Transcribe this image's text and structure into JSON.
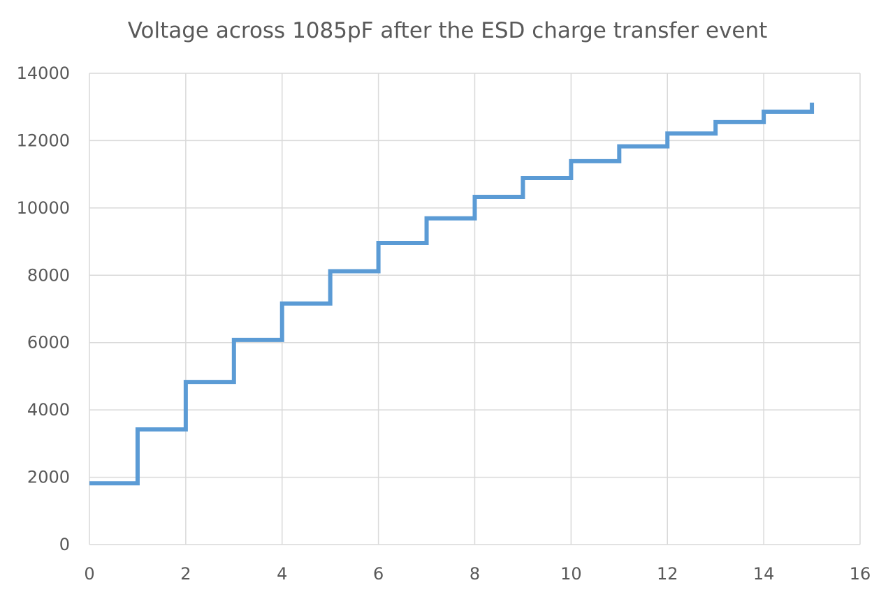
{
  "chart_data": {
    "type": "line",
    "step": true,
    "title": "Voltage across 1085pF after the ESD charge transfer event",
    "xlabel": "",
    "ylabel": "",
    "xlim": [
      0,
      16
    ],
    "ylim": [
      0,
      14000
    ],
    "x_ticks": [
      0,
      2,
      4,
      6,
      8,
      10,
      12,
      14,
      16
    ],
    "y_ticks": [
      0,
      2000,
      4000,
      6000,
      8000,
      10000,
      12000,
      14000
    ],
    "grid": true,
    "legend": "none",
    "series": [
      {
        "name": "Voltage",
        "color": "#5B9BD5",
        "x": [
          0,
          1,
          1,
          2,
          2,
          3,
          3,
          4,
          4,
          5,
          5,
          6,
          6,
          7,
          7,
          8,
          8,
          9,
          9,
          10,
          10,
          11,
          11,
          12,
          12,
          13,
          13,
          14,
          14,
          15,
          15
        ],
        "values": [
          1820,
          1820,
          3420,
          3420,
          4830,
          4830,
          6080,
          6080,
          7160,
          7160,
          8120,
          8120,
          8960,
          8960,
          9690,
          9690,
          10330,
          10330,
          10890,
          10890,
          11390,
          11390,
          11830,
          11830,
          12210,
          12210,
          12550,
          12550,
          12860,
          12860,
          13130
        ]
      }
    ]
  }
}
